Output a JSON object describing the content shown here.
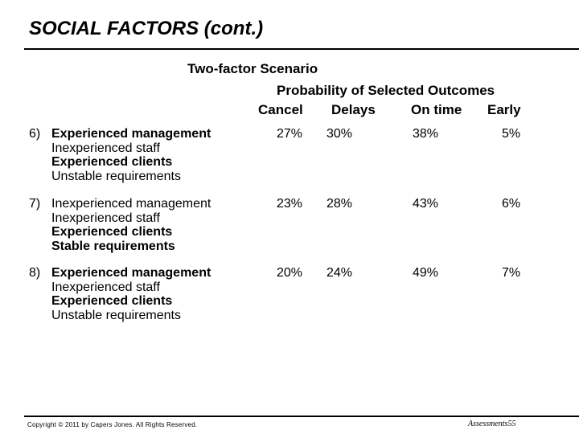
{
  "title": "SOCIAL FACTORS (cont.)",
  "scenario": "Two-factor Scenario",
  "probability_header": "Probability of Selected Outcomes",
  "columns": [
    "Cancel",
    "Delays",
    "On time",
    "Early"
  ],
  "rows": [
    {
      "number": "6)",
      "factors": [
        "Experienced management",
        "Inexperienced staff",
        "Experienced clients",
        "Unstable requirements"
      ],
      "values": [
        "27%",
        "30%",
        "38%",
        "5%"
      ]
    },
    {
      "number": "7)",
      "factors": [
        "Inexperienced management",
        "Inexperienced staff",
        "Experienced clients",
        "Stable requirements"
      ],
      "values": [
        "23%",
        "28%",
        "43%",
        "6%"
      ]
    },
    {
      "number": "8)",
      "factors": [
        "Experienced management",
        "Inexperienced staff",
        "Experienced clients",
        "Unstable requirements"
      ],
      "values": [
        "20%",
        "24%",
        "49%",
        "7%"
      ]
    }
  ],
  "footer": {
    "copyright": "Copyright © 2011 by Capers Jones. All Rights Reserved.",
    "slide_id": "Assessments55"
  }
}
